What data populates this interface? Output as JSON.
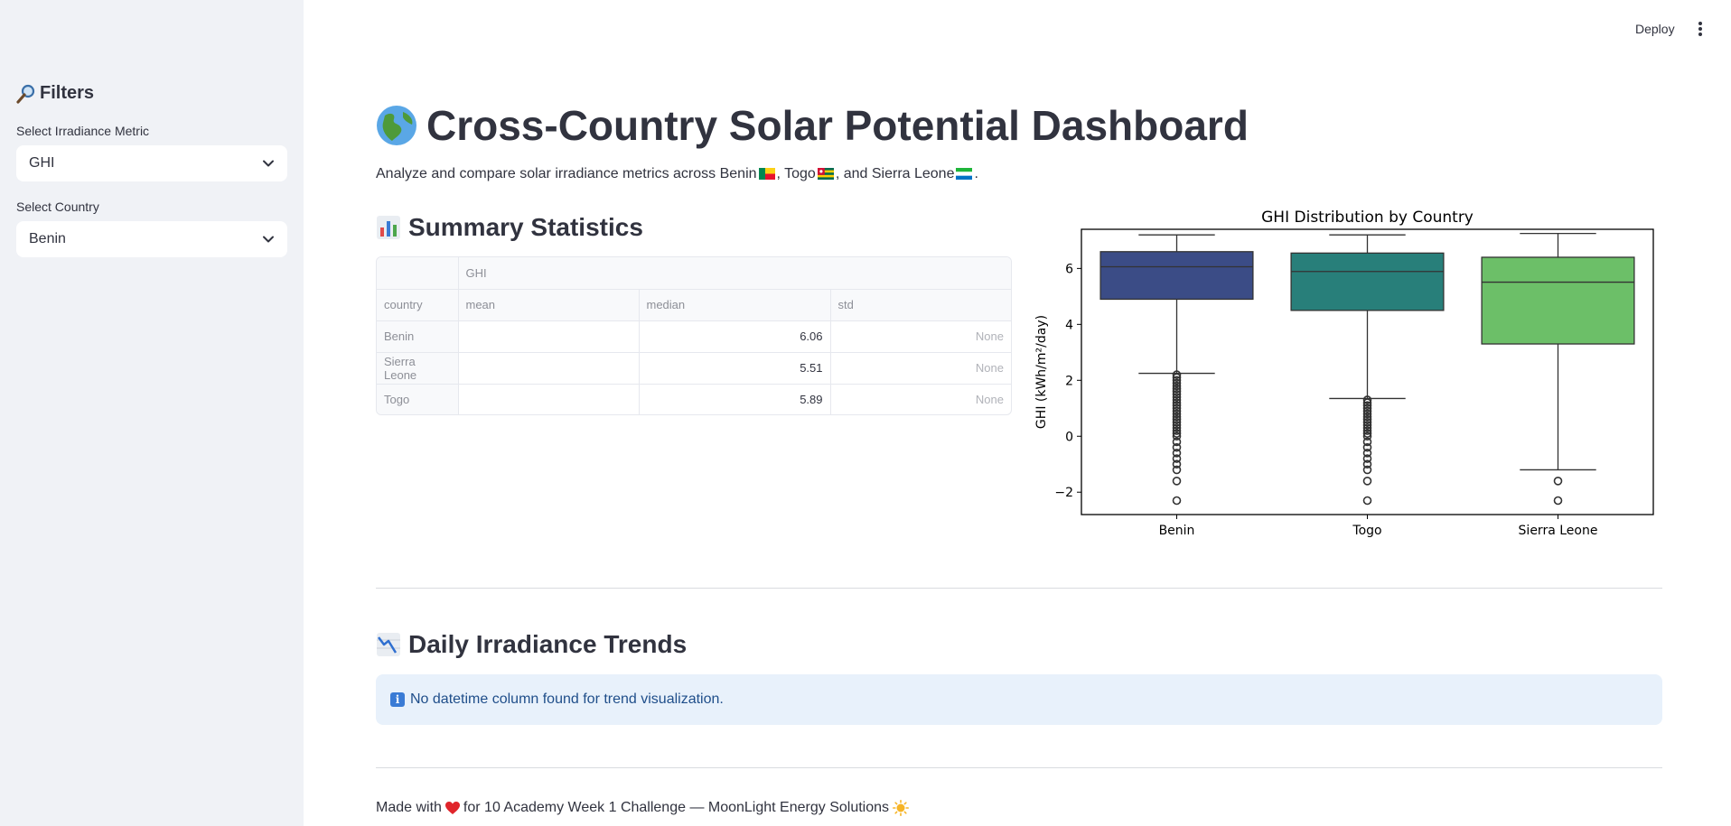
{
  "sidebar": {
    "title": "Filters",
    "metric_label": "Select Irradiance Metric",
    "metric_value": "GHI",
    "country_label": "Select Country",
    "country_value": "Benin"
  },
  "header": {
    "deploy_label": "Deploy"
  },
  "main": {
    "title": "Cross-Country Solar Potential Dashboard",
    "subtitle": {
      "prefix": "Analyze and compare solar irradiance metrics across Benin",
      "togo": ", Togo",
      "sierra": ", and Sierra Leone",
      "end": "."
    },
    "summary_heading": "Summary Statistics",
    "trends_heading": "Daily Irradiance Trends",
    "info_message": "No datetime column found for trend visualization.",
    "footer": {
      "prefix": "Made with",
      "text": "for 10 Academy Week 1 Challenge — MoonLight Energy Solutions"
    }
  },
  "table": {
    "group_header": "GHI",
    "index_header": "country",
    "columns": [
      "mean",
      "median",
      "std"
    ],
    "rows": [
      {
        "country": "Benin",
        "mean": "",
        "median": "6.06",
        "std": "None"
      },
      {
        "country": "Sierra Leone",
        "mean": "",
        "median": "5.51",
        "std": "None"
      },
      {
        "country": "Togo",
        "mean": "",
        "median": "5.89",
        "std": "None"
      }
    ]
  },
  "colors": {
    "benin": "#3b4c86",
    "togo": "#287f7a",
    "sierra_leone": "#6cbf68"
  },
  "chart_data": {
    "type": "boxplot",
    "title": "GHI Distribution by Country",
    "xlabel": "",
    "ylabel": "GHI (kWh/m²/day)",
    "ylim": [
      -2.8,
      7.4
    ],
    "yticks": [
      -2,
      0,
      2,
      4,
      6
    ],
    "categories": [
      "Benin",
      "Togo",
      "Sierra Leone"
    ],
    "boxes": [
      {
        "name": "Benin",
        "whisker_low": 2.25,
        "q1": 4.9,
        "median": 6.06,
        "q3": 6.6,
        "whisker_high": 7.2,
        "color": "#3b4c86",
        "outliers": [
          2.2,
          2.1,
          2.0,
          1.9,
          1.8,
          1.7,
          1.6,
          1.5,
          1.4,
          1.3,
          1.2,
          1.1,
          1.0,
          0.9,
          0.8,
          0.7,
          0.6,
          0.5,
          0.4,
          0.3,
          0.2,
          0.1,
          0.0,
          -0.2,
          -0.4,
          -0.6,
          -0.8,
          -1.0,
          -1.2,
          -1.6,
          -2.3
        ]
      },
      {
        "name": "Togo",
        "whisker_low": 1.35,
        "q1": 4.5,
        "median": 5.89,
        "q3": 6.55,
        "whisker_high": 7.2,
        "color": "#287f7a",
        "outliers": [
          1.3,
          1.2,
          1.1,
          1.0,
          0.9,
          0.8,
          0.7,
          0.6,
          0.5,
          0.4,
          0.3,
          0.2,
          0.1,
          0.0,
          -0.2,
          -0.4,
          -0.6,
          -0.8,
          -1.0,
          -1.2,
          -1.6,
          -2.3
        ]
      },
      {
        "name": "Sierra Leone",
        "whisker_low": -1.2,
        "q1": 3.3,
        "median": 5.51,
        "q3": 6.4,
        "whisker_high": 7.25,
        "color": "#6cbf68",
        "outliers": [
          -1.6,
          -2.3
        ]
      }
    ]
  }
}
